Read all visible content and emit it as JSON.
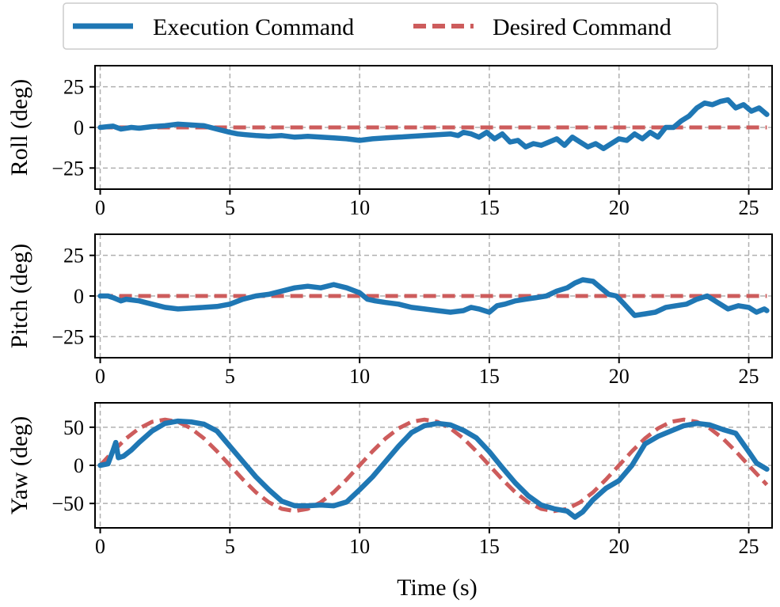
{
  "colors": {
    "execution": "#1f77b4",
    "desired": "#cd5c5c"
  },
  "legend": {
    "execution_label": "Execution Command",
    "desired_label": "Desired Command",
    "placement": "top-center"
  },
  "chart_data": [
    {
      "type": "line",
      "ylabel": "Roll (deg)",
      "xlabel": "",
      "xlim": [
        -0.2,
        25.9
      ],
      "ylim": [
        -38,
        38
      ],
      "xticks": [
        0,
        5,
        10,
        15,
        20,
        25
      ],
      "xtick_labels": [
        "0",
        "5",
        "10",
        "15",
        "20",
        "25"
      ],
      "yticks": [
        25,
        0,
        -25
      ],
      "ytick_labels": [
        "25",
        "0",
        "−25"
      ],
      "grid": true,
      "series": [
        {
          "name": "Execution Command",
          "style": "solid",
          "x": [
            0,
            0.3,
            0.5,
            0.8,
            1.2,
            1.5,
            2.0,
            2.5,
            3.0,
            3.5,
            4.0,
            4.5,
            5.0,
            5.3,
            5.6,
            6.0,
            6.5,
            7.0,
            7.5,
            8.0,
            8.5,
            9.0,
            9.5,
            10.0,
            10.5,
            11.0,
            11.5,
            12.0,
            12.5,
            13.0,
            13.5,
            13.8,
            14.0,
            14.3,
            14.6,
            14.9,
            15.2,
            15.5,
            15.8,
            16.1,
            16.4,
            16.7,
            17.0,
            17.3,
            17.6,
            17.9,
            18.2,
            18.5,
            18.8,
            19.1,
            19.4,
            19.7,
            20.0,
            20.3,
            20.6,
            20.9,
            21.2,
            21.5,
            21.8,
            22.1,
            22.4,
            22.7,
            23.0,
            23.3,
            23.6,
            23.9,
            24.2,
            24.5,
            24.8,
            25.1,
            25.4,
            25.7
          ],
          "y": [
            0,
            0.5,
            0.8,
            -1,
            0,
            -0.5,
            0.5,
            1,
            2,
            1.5,
            1,
            -1,
            -3,
            -4,
            -4.5,
            -5,
            -5.5,
            -5,
            -6,
            -5.5,
            -6,
            -6.5,
            -7,
            -8,
            -7,
            -6.5,
            -6,
            -5.5,
            -5,
            -4.5,
            -4,
            -5,
            -3,
            -4,
            -6,
            -3,
            -7,
            -4,
            -9,
            -8,
            -12,
            -10,
            -11,
            -9,
            -7,
            -11,
            -6,
            -9,
            -12,
            -10,
            -13,
            -10,
            -7,
            -8,
            -4,
            -7,
            -3,
            -6,
            0,
            0,
            4,
            7,
            12,
            15,
            14,
            16,
            17,
            12,
            14,
            10,
            12,
            8
          ]
        },
        {
          "name": "Desired Command",
          "style": "dashed",
          "x": [
            0,
            25.7
          ],
          "y": [
            0,
            0
          ]
        }
      ]
    },
    {
      "type": "line",
      "ylabel": "Pitch (deg)",
      "xlabel": "",
      "xlim": [
        -0.2,
        25.9
      ],
      "ylim": [
        -38,
        38
      ],
      "xticks": [
        0,
        5,
        10,
        15,
        20,
        25
      ],
      "xtick_labels": [
        "0",
        "5",
        "10",
        "15",
        "20",
        "25"
      ],
      "yticks": [
        25,
        0,
        -25
      ],
      "ytick_labels": [
        "25",
        "0",
        "−25"
      ],
      "grid": true,
      "series": [
        {
          "name": "Execution Command",
          "style": "solid",
          "x": [
            0,
            0.3,
            0.5,
            0.8,
            1.0,
            1.5,
            2.0,
            2.5,
            3.0,
            3.5,
            4.0,
            4.5,
            5.0,
            5.5,
            6.0,
            6.5,
            7.0,
            7.5,
            8.0,
            8.5,
            9.0,
            9.5,
            10.0,
            10.3,
            10.6,
            11.0,
            11.5,
            12.0,
            12.5,
            13.0,
            13.5,
            14.0,
            14.3,
            14.6,
            15.0,
            15.3,
            15.6,
            16.0,
            16.4,
            16.8,
            17.2,
            17.6,
            18.0,
            18.3,
            18.6,
            19.0,
            19.3,
            19.6,
            19.9,
            20.2,
            20.6,
            21.0,
            21.4,
            21.8,
            22.2,
            22.6,
            23.0,
            23.4,
            23.8,
            24.2,
            24.6,
            25.0,
            25.3,
            25.6,
            25.7
          ],
          "y": [
            0,
            0,
            -1,
            -3,
            -2,
            -3,
            -5,
            -7,
            -8,
            -7.5,
            -7,
            -6.5,
            -5,
            -2,
            0,
            1,
            3,
            5,
            6,
            5,
            7,
            5,
            2,
            -2,
            -3,
            -4,
            -5,
            -7,
            -8,
            -9,
            -10,
            -9,
            -7,
            -8,
            -10,
            -6,
            -5,
            -3,
            -2,
            -1,
            0,
            3,
            5,
            8,
            10,
            9,
            5,
            1,
            0,
            -5,
            -12,
            -11,
            -10,
            -7,
            -6,
            -5,
            -2,
            0,
            -4,
            -8,
            -6,
            -7,
            -10,
            -8,
            -9
          ]
        },
        {
          "name": "Desired Command",
          "style": "dashed",
          "x": [
            0,
            25.7
          ],
          "y": [
            0,
            0
          ]
        }
      ]
    },
    {
      "type": "line",
      "ylabel": "Yaw (deg)",
      "xlabel": "Time (s)",
      "xlim": [
        -0.2,
        25.9
      ],
      "ylim": [
        -82,
        82
      ],
      "xticks": [
        0,
        5,
        10,
        15,
        20,
        25
      ],
      "xtick_labels": [
        "0",
        "5",
        "10",
        "15",
        "20",
        "25"
      ],
      "yticks": [
        50,
        0,
        -50
      ],
      "ytick_labels": [
        "50",
        "0",
        "−50"
      ],
      "grid": true,
      "series": [
        {
          "name": "Execution Command",
          "style": "solid",
          "x": [
            0,
            0.3,
            0.5,
            0.6,
            0.7,
            0.9,
            1.2,
            1.5,
            2.0,
            2.5,
            3.0,
            3.5,
            4.0,
            4.5,
            5.0,
            5.5,
            6.0,
            6.5,
            7.0,
            7.5,
            8.0,
            8.5,
            9.0,
            9.5,
            10.0,
            10.5,
            11.0,
            11.5,
            12.0,
            12.5,
            13.0,
            13.5,
            14.0,
            14.5,
            15.0,
            15.5,
            16.0,
            16.5,
            17.0,
            17.5,
            18.0,
            18.3,
            18.6,
            19.0,
            19.5,
            20.0,
            20.5,
            21.0,
            21.5,
            22.0,
            22.5,
            23.0,
            23.5,
            24.0,
            24.5,
            25.0,
            25.3,
            25.7
          ],
          "y": [
            0,
            2,
            20,
            30,
            10,
            12,
            20,
            30,
            45,
            55,
            58,
            57,
            54,
            45,
            25,
            5,
            -15,
            -32,
            -47,
            -53,
            -53,
            -52,
            -53,
            -48,
            -32,
            -15,
            5,
            25,
            43,
            52,
            55,
            53,
            46,
            36,
            18,
            -3,
            -23,
            -40,
            -52,
            -57,
            -60,
            -68,
            -61,
            -45,
            -30,
            -20,
            0,
            28,
            38,
            45,
            52,
            55,
            53,
            47,
            42,
            18,
            3,
            -5
          ]
        },
        {
          "name": "Desired Command",
          "style": "dashed",
          "x": [
            0,
            0.5,
            1.0,
            1.5,
            2.0,
            2.5,
            3.0,
            3.5,
            4.0,
            4.5,
            5.0,
            5.5,
            6.0,
            6.5,
            7.0,
            7.5,
            8.0,
            8.5,
            9.0,
            9.5,
            10.0,
            10.5,
            11.0,
            11.5,
            12.0,
            12.5,
            13.0,
            13.5,
            14.0,
            14.5,
            15.0,
            15.5,
            16.0,
            16.5,
            17.0,
            17.5,
            18.0,
            18.5,
            19.0,
            19.5,
            20.0,
            20.5,
            21.0,
            21.5,
            22.0,
            22.5,
            23.0,
            23.5,
            24.0,
            24.5,
            25.0,
            25.7
          ],
          "y": [
            0,
            18.5,
            35.3,
            48.5,
            57.1,
            60.0,
            57.1,
            48.5,
            35.3,
            18.5,
            0,
            -18.5,
            -35.3,
            -48.5,
            -57.1,
            -60.0,
            -57.1,
            -48.5,
            -35.3,
            -18.5,
            0,
            18.5,
            35.3,
            48.5,
            57.1,
            60.0,
            57.1,
            48.5,
            35.3,
            18.5,
            0,
            -18.5,
            -35.3,
            -48.5,
            -57.1,
            -60.0,
            -57.1,
            -48.5,
            -35.3,
            -18.5,
            0,
            18.5,
            35.3,
            48.5,
            57.1,
            60.0,
            57.1,
            48.5,
            35.3,
            18.5,
            0,
            -25.5
          ]
        }
      ]
    }
  ]
}
